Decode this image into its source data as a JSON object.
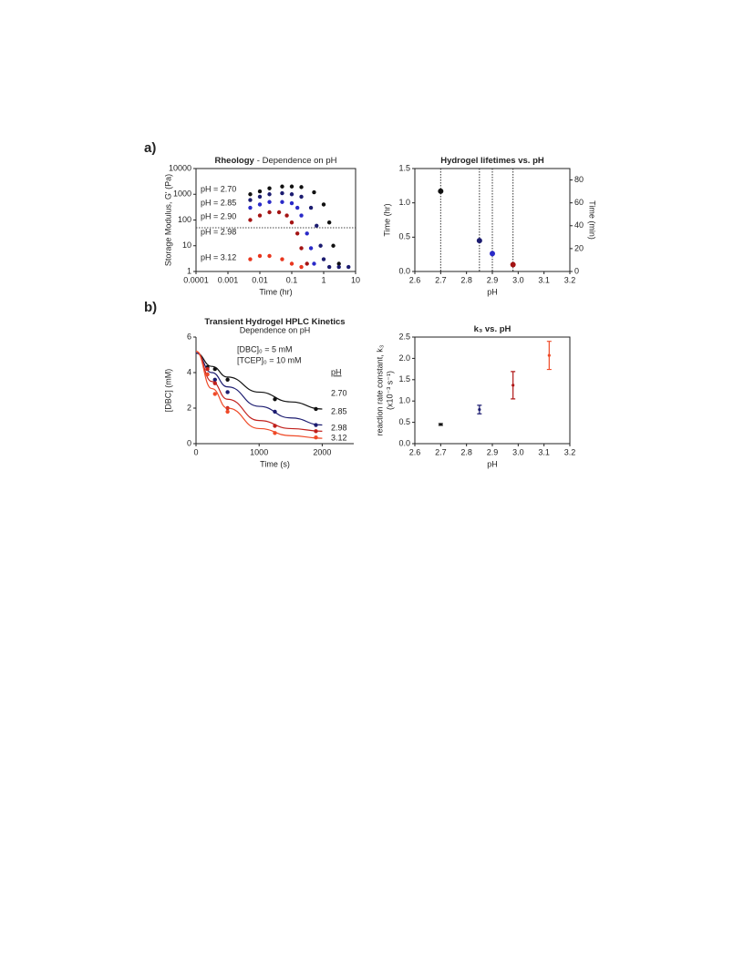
{
  "chart_data": [
    {
      "type": "scatter",
      "title": "Rheology",
      "title_suffix": "- Dependence on pH",
      "x_label": "Time (hr)",
      "y_label": "Storage Modulus, G' (Pa)",
      "xscale": "log",
      "yscale": "log",
      "frame": true,
      "xlim": [
        0.0001,
        10
      ],
      "xticks": [
        0.0001,
        0.001,
        0.01,
        0.1,
        1,
        10
      ],
      "ylim": [
        1,
        10000
      ],
      "yticks": [
        1,
        10,
        100,
        1000,
        10000
      ],
      "hline": 50,
      "series": [
        {
          "name": "pH = 2.70",
          "color": "#111111",
          "x": [
            0.005,
            0.01,
            0.02,
            0.05,
            0.1,
            0.2,
            0.5,
            1,
            1.5,
            2,
            3
          ],
          "values": [
            1000,
            1300,
            1700,
            2000,
            2000,
            1900,
            1200,
            400,
            80,
            10,
            2
          ]
        },
        {
          "name": "pH = 2.85",
          "color": "#1c1c70",
          "x": [
            0.005,
            0.01,
            0.02,
            0.05,
            0.1,
            0.2,
            0.4,
            0.6,
            0.8,
            1,
            1.5,
            3,
            6
          ],
          "values": [
            600,
            800,
            1000,
            1100,
            1000,
            800,
            300,
            60,
            10,
            3,
            1.5,
            1.5,
            1.5
          ]
        },
        {
          "name": "pH = 2.90",
          "color": "#2a2ac8",
          "x": [
            0.005,
            0.01,
            0.02,
            0.05,
            0.1,
            0.15,
            0.2,
            0.3,
            0.4,
            0.5
          ],
          "values": [
            300,
            400,
            500,
            500,
            450,
            300,
            150,
            30,
            8,
            2
          ]
        },
        {
          "name": "pH = 2.98",
          "color": "#a41414",
          "x": [
            0.005,
            0.01,
            0.02,
            0.04,
            0.07,
            0.1,
            0.15,
            0.2,
            0.3
          ],
          "values": [
            100,
            150,
            200,
            200,
            150,
            80,
            30,
            8,
            2
          ]
        },
        {
          "name": "pH = 3.12",
          "color": "#e8361e",
          "x": [
            0.005,
            0.01,
            0.02,
            0.05,
            0.1,
            0.2
          ],
          "values": [
            3,
            4,
            4,
            3,
            2,
            1.5
          ]
        }
      ]
    },
    {
      "type": "scatter",
      "title": "Hydrogel lifetimes vs. pH",
      "x_label": "pH",
      "y_label": "Time (hr)",
      "y2_label": "Time (min)",
      "frame": true,
      "drop_lines": true,
      "xlim": [
        2.6,
        3.2
      ],
      "xticks": [
        2.6,
        2.7,
        2.8,
        2.9,
        {
          "value": 3,
          "label": "3.0"
        },
        3.1,
        3.2
      ],
      "ylim": [
        0,
        1.5
      ],
      "yticks": [
        {
          "value": 0,
          "label": "0.0"
        },
        0.5,
        {
          "value": 1,
          "label": "1.0"
        },
        1.5
      ],
      "y2lim": [
        0,
        90
      ],
      "y2ticks": [
        0,
        20,
        40,
        60,
        80
      ],
      "series": [
        {
          "color": "#111111",
          "x": [
            2.7
          ],
          "values": [
            1.17
          ]
        },
        {
          "color": "#1c1c70",
          "x": [
            2.85
          ],
          "values": [
            0.45
          ]
        },
        {
          "color": "#2a2ac8",
          "x": [
            2.9
          ],
          "values": [
            0.26
          ]
        },
        {
          "color": "#a41414",
          "x": [
            2.98
          ],
          "values": [
            0.1
          ]
        }
      ]
    },
    {
      "type": "scatter",
      "title": "Transient Hydrogel HPLC Kinetics",
      "subtitle": "Dependence on pH",
      "x_label": "Time (s)",
      "y_label": "[DBC] (mM)",
      "frame": false,
      "annotations": [
        "[DBC]₀ = 5 mM",
        "[TCEP]₀ = 10 mM"
      ],
      "legend_title": "pH",
      "xlim": [
        0,
        2500
      ],
      "xticks": [
        0,
        1000,
        2000
      ],
      "ylim": [
        0,
        6
      ],
      "yticks": [
        0,
        2,
        4,
        6
      ],
      "fit_x": [
        0,
        250,
        500,
        1000,
        1500,
        2000
      ],
      "series": [
        {
          "name": "2.70",
          "color": "#111111",
          "x": [
            180,
            300,
            500,
            1250,
            1900
          ],
          "values": [
            4.3,
            4.2,
            3.6,
            2.5,
            1.95
          ],
          "fit_values": [
            5.1,
            4.35,
            3.75,
            2.9,
            2.35,
            1.95
          ]
        },
        {
          "name": "2.85",
          "color": "#1c1c70",
          "x": [
            180,
            300,
            500,
            1250,
            1900
          ],
          "values": [
            3.9,
            3.6,
            2.9,
            1.8,
            1.05
          ],
          "fit_values": [
            5.1,
            4.0,
            3.2,
            2.1,
            1.45,
            1.05
          ]
        },
        {
          "name": "2.98",
          "color": "#c0201c",
          "x": [
            180,
            300,
            500,
            1250,
            1900
          ],
          "values": [
            4.2,
            3.4,
            2.0,
            1.0,
            0.7
          ],
          "fit_values": [
            5.2,
            3.5,
            2.5,
            1.3,
            0.85,
            0.7
          ]
        },
        {
          "name": "3.12",
          "color": "#ef4a28",
          "x": [
            180,
            300,
            500,
            1250,
            1900
          ],
          "values": [
            3.9,
            2.8,
            1.8,
            0.6,
            0.35
          ],
          "fit_values": [
            5.2,
            3.1,
            2.0,
            0.85,
            0.45,
            0.3
          ]
        }
      ]
    },
    {
      "type": "scatter",
      "title": "k₃ vs. pH",
      "x_label": "pH",
      "y_label": "reaction rate constant, k₃",
      "y_label_2": "(x10⁻³ s⁻¹)",
      "frame": true,
      "xlim": [
        2.6,
        3.2
      ],
      "xticks": [
        2.6,
        2.7,
        2.8,
        2.9,
        {
          "value": 3,
          "label": "3.0"
        },
        3.1,
        3.2
      ],
      "ylim": [
        0,
        2.5
      ],
      "yticks": [
        {
          "value": 0,
          "label": "0.0"
        },
        0.5,
        {
          "value": 1,
          "label": "1.0"
        },
        1.5,
        {
          "value": 2,
          "label": "2.0"
        },
        2.5
      ],
      "series": [
        {
          "color": "#111111",
          "x": [
            2.7
          ],
          "values": [
            0.45
          ],
          "errors": [
            0.02
          ]
        },
        {
          "color": "#1c1c70",
          "x": [
            2.85
          ],
          "values": [
            0.8
          ],
          "errors": [
            0.1
          ]
        },
        {
          "color": "#b01818",
          "x": [
            2.98
          ],
          "values": [
            1.37
          ],
          "errors": [
            0.32
          ]
        },
        {
          "color": "#ef4a28",
          "x": [
            3.12
          ],
          "values": [
            2.07
          ],
          "errors": [
            0.33
          ]
        }
      ]
    }
  ],
  "panels": [
    "a)",
    "b)"
  ]
}
